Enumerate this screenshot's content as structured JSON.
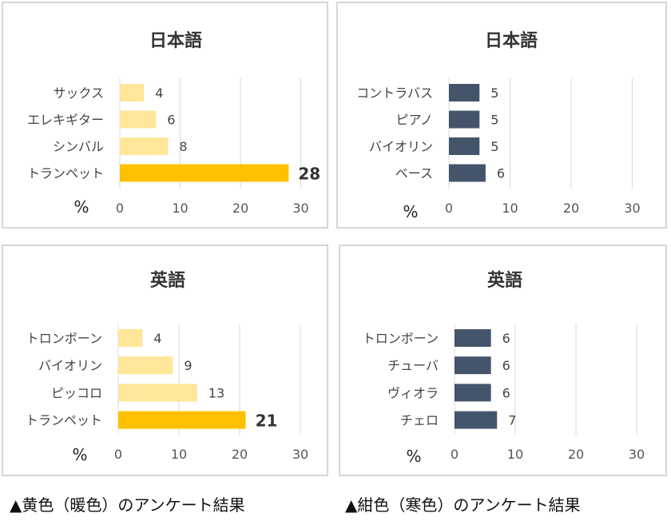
{
  "chart_data": [
    {
      "type": "bar",
      "orientation": "horizontal",
      "title": "日本語",
      "categories": [
        "サックス",
        "エレキギター",
        "シンバル",
        "トランペット"
      ],
      "values": [
        4,
        6,
        8,
        28
      ],
      "colors": [
        "#ffe699",
        "#ffe699",
        "#ffe699",
        "#ffc000"
      ],
      "highlight_index": 3,
      "xlim": [
        0,
        30
      ],
      "xticks": [
        0,
        10,
        20,
        30
      ],
      "unit_label": "%",
      "grid": true
    },
    {
      "type": "bar",
      "orientation": "horizontal",
      "title": "日本語",
      "categories": [
        "コントラバス",
        "ピアノ",
        "バイオリン",
        "ベース"
      ],
      "values": [
        5,
        5,
        5,
        6
      ],
      "colors": [
        "#44546a",
        "#44546a",
        "#44546a",
        "#44546a"
      ],
      "highlight_index": -1,
      "xlim": [
        0,
        30
      ],
      "xticks": [
        0,
        10,
        20,
        30
      ],
      "unit_label": "%",
      "grid": true
    },
    {
      "type": "bar",
      "orientation": "horizontal",
      "title": "英語",
      "categories": [
        "トロンボーン",
        "バイオリン",
        "ピッコロ",
        "トランペット"
      ],
      "values": [
        4,
        9,
        13,
        21
      ],
      "colors": [
        "#ffe699",
        "#ffe699",
        "#ffe699",
        "#ffc000"
      ],
      "highlight_index": 3,
      "xlim": [
        0,
        30
      ],
      "xticks": [
        0,
        10,
        20,
        30
      ],
      "unit_label": "%",
      "grid": true
    },
    {
      "type": "bar",
      "orientation": "horizontal",
      "title": "英語",
      "categories": [
        "トロンボーン",
        "チューバ",
        "ヴィオラ",
        "チェロ"
      ],
      "values": [
        6,
        6,
        6,
        7
      ],
      "colors": [
        "#44546a",
        "#44546a",
        "#44546a",
        "#44546a"
      ],
      "highlight_index": -1,
      "xlim": [
        0,
        30
      ],
      "xticks": [
        0,
        10,
        20,
        30
      ],
      "unit_label": "%",
      "grid": true
    }
  ],
  "captions": {
    "warm": "▲黄色（暖色）のアンケート結果",
    "cold": "▲紺色（寒色）のアンケート結果"
  }
}
